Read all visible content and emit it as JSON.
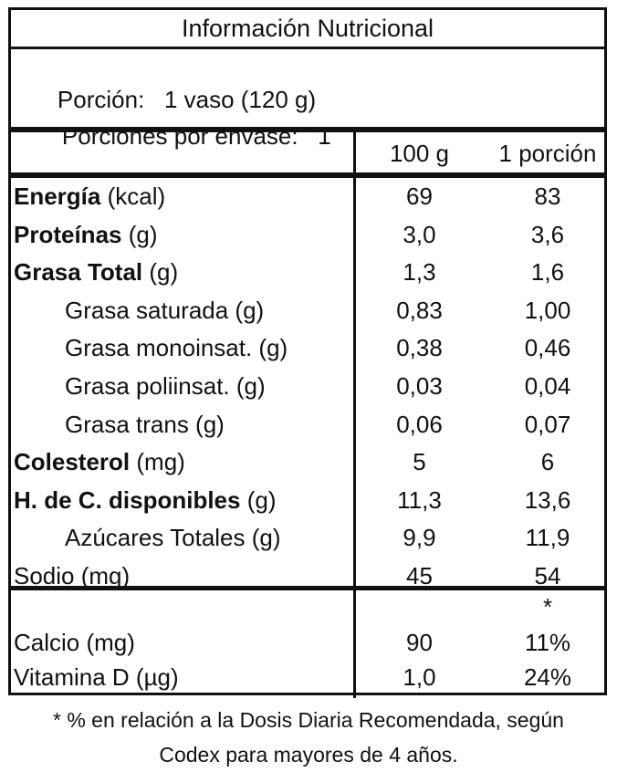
{
  "title": "Información Nutricional",
  "serving": {
    "porcion_label": "Porción:",
    "porcion_value": "1 vaso (120 g)",
    "porciones_label": "Porciones por envase:",
    "porciones_value": "1"
  },
  "columns": {
    "col1": "100 g",
    "col2": "1 porción"
  },
  "rows": [
    {
      "bold": "Energía",
      "unit": " (kcal)",
      "v1": "69",
      "v2": "83",
      "indent": false
    },
    {
      "bold": "Proteínas",
      "unit": " (g)",
      "v1": "3,0",
      "v2": "3,6",
      "indent": false
    },
    {
      "bold": "Grasa Total",
      "unit": " (g)",
      "v1": "1,3",
      "v2": "1,6",
      "indent": false
    },
    {
      "bold": "",
      "unit": "Grasa saturada (g)",
      "v1": "0,83",
      "v2": "1,00",
      "indent": true
    },
    {
      "bold": "",
      "unit": "Grasa monoinsat. (g)",
      "v1": "0,38",
      "v2": "0,46",
      "indent": true
    },
    {
      "bold": "",
      "unit": "Grasa poliinsat. (g)",
      "v1": "0,03",
      "v2": "0,04",
      "indent": true
    },
    {
      "bold": "",
      "unit": "Grasa trans (g)",
      "v1": "0,06",
      "v2": "0,07",
      "indent": true
    },
    {
      "bold": "Colesterol",
      "unit": " (mg)",
      "v1": "5",
      "v2": "6",
      "indent": false
    },
    {
      "bold": "H. de C. disponibles",
      "unit": " (g)",
      "v1": "11,3",
      "v2": "13,6",
      "indent": false
    },
    {
      "bold": "",
      "unit": "Azúcares Totales (g)",
      "v1": "9,9",
      "v2": "11,9",
      "indent": true
    },
    {
      "bold": "",
      "unit": "Sodio (mg)",
      "v1": "45",
      "v2": "54",
      "indent": false
    }
  ],
  "micro_marker": "*",
  "micro_rows": [
    {
      "name": "Calcio (mg)",
      "v1": "90",
      "v2": "11%"
    },
    {
      "name": "Vitamina D (µg)",
      "v1": "1,0",
      "v2": "24%"
    }
  ],
  "footnote": {
    "line1": "* % en relación a la Dosis Diaria Recomendada, según",
    "line2": "Codex para mayores de 4 años."
  }
}
